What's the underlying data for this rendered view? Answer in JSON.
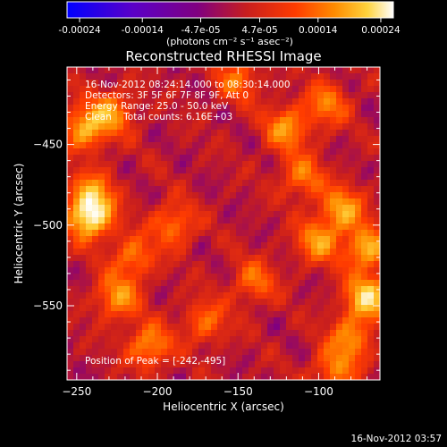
{
  "colorbar": {
    "ticks": [
      "-0.00024",
      "-0.00014",
      "-4.7e-05",
      "4.7e-05",
      "0.00014",
      "0.00024"
    ],
    "tick_values": [
      -0.00024,
      -0.00014,
      -4.7e-05,
      4.7e-05,
      0.00014,
      0.00024
    ],
    "range": [
      -0.00026,
      0.00026
    ],
    "units": "(photons cm⁻² s⁻¹ asec⁻²)",
    "colors": [
      "#0000ff",
      "#5a00c8",
      "#800080",
      "#c81e1e",
      "#ff3c00",
      "#ff8c00",
      "#ffd23c",
      "#ffffff"
    ]
  },
  "chart_data": {
    "type": "heatmap",
    "title": "Reconstructed RHESSI Image",
    "xlabel": "Heliocentric X (arcsec)",
    "ylabel": "Heliocentric Y (arcsec)",
    "xlim": [
      -256,
      -62
    ],
    "ylim": [
      -596,
      -402
    ],
    "x_ticks": [
      -250,
      -200,
      -150,
      -100
    ],
    "y_ticks": [
      -450,
      -500,
      -550
    ],
    "info_lines": [
      "16-Nov-2012 08:24:14.000 to 08:30:14.000",
      "Detectors: 3F 5F 6F 7F 8F 9F, Att 0",
      "Energy Range: 25.0 - 50.0 keV",
      "Clean    Total counts: 6.16E+03"
    ],
    "peak_label": "Position of Peak = [-242,-495]",
    "peak": [
      -242,
      -495
    ],
    "sources": [
      {
        "x": -242,
        "y": -495,
        "intensity": 1.0
      },
      {
        "x": -240,
        "y": -480,
        "intensity": 0.55
      },
      {
        "x": -245,
        "y": -440,
        "intensity": 0.7
      },
      {
        "x": -228,
        "y": -430,
        "intensity": 0.55
      },
      {
        "x": -225,
        "y": -545,
        "intensity": 0.6
      },
      {
        "x": -215,
        "y": -520,
        "intensity": 0.5
      },
      {
        "x": -205,
        "y": -575,
        "intensity": 0.6
      },
      {
        "x": -190,
        "y": -500,
        "intensity": 0.5
      },
      {
        "x": -170,
        "y": -560,
        "intensity": 0.45
      },
      {
        "x": -140,
        "y": -535,
        "intensity": 0.45
      },
      {
        "x": -120,
        "y": -440,
        "intensity": 0.6
      },
      {
        "x": -110,
        "y": -470,
        "intensity": 0.5
      },
      {
        "x": -100,
        "y": -510,
        "intensity": 0.6
      },
      {
        "x": -85,
        "y": -490,
        "intensity": 0.65
      },
      {
        "x": -70,
        "y": -515,
        "intensity": 0.7
      },
      {
        "x": -70,
        "y": -545,
        "intensity": 0.85
      },
      {
        "x": -80,
        "y": -570,
        "intensity": 0.55
      },
      {
        "x": -90,
        "y": -590,
        "intensity": 0.5
      },
      {
        "x": -150,
        "y": -410,
        "intensity": 0.45
      },
      {
        "x": -95,
        "y": -425,
        "intensity": 0.5
      }
    ]
  },
  "timestamp": "16-Nov-2012 03:57"
}
